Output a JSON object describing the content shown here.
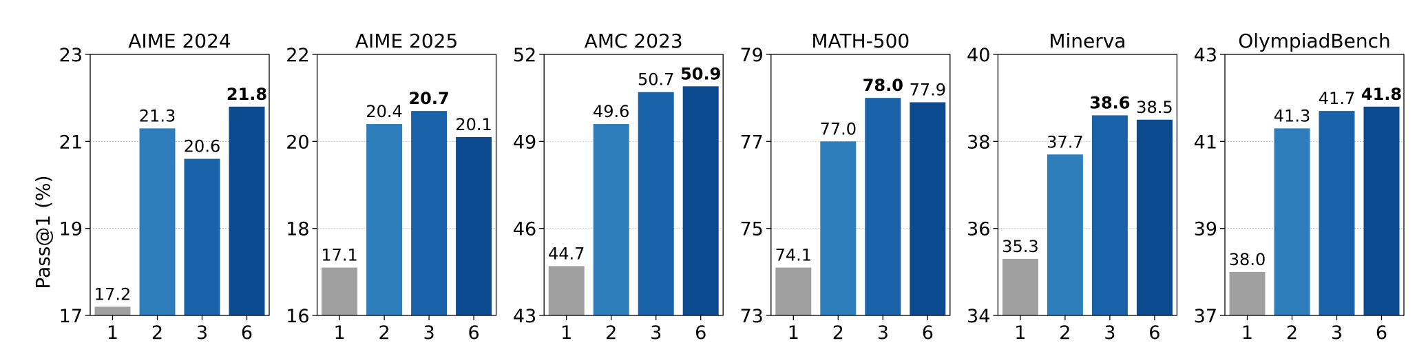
{
  "chart_data": {
    "type": "bar",
    "ylabel": "Pass@1 (%)",
    "colors": {
      "1": "#a0a0a0",
      "2": "#2f7ebc",
      "3": "#1a62a8",
      "6": "#0b4a8e"
    },
    "panels": [
      {
        "title": "AIME 2024",
        "categories": [
          "1",
          "2",
          "3",
          "6"
        ],
        "values": [
          17.2,
          21.3,
          20.6,
          21.8
        ],
        "labels": [
          "17.2",
          "21.3",
          "20.6",
          "21.8"
        ],
        "best_index": 3,
        "ylim": [
          17,
          23
        ],
        "yticks": [
          "17",
          "19",
          "21",
          "23"
        ],
        "grid": true
      },
      {
        "title": "AIME 2025",
        "categories": [
          "1",
          "2",
          "3",
          "6"
        ],
        "values": [
          17.1,
          20.4,
          20.7,
          20.1
        ],
        "labels": [
          "17.1",
          "20.4",
          "20.7",
          "20.1"
        ],
        "best_index": 2,
        "ylim": [
          16,
          22
        ],
        "yticks": [
          "16",
          "18",
          "20",
          "22"
        ],
        "grid": true
      },
      {
        "title": "AMC 2023",
        "categories": [
          "1",
          "2",
          "3",
          "6"
        ],
        "values": [
          44.7,
          49.6,
          50.7,
          50.9
        ],
        "labels": [
          "44.7",
          "49.6",
          "50.7",
          "50.9"
        ],
        "best_index": 3,
        "ylim": [
          43,
          52
        ],
        "yticks": [
          "43",
          "46",
          "49",
          "52"
        ],
        "grid": true
      },
      {
        "title": "MATH-500",
        "categories": [
          "1",
          "2",
          "3",
          "6"
        ],
        "values": [
          74.1,
          77.0,
          78.0,
          77.9
        ],
        "labels": [
          "74.1",
          "77.0",
          "78.0",
          "77.9"
        ],
        "best_index": 2,
        "ylim": [
          73,
          79
        ],
        "yticks": [
          "73",
          "75",
          "77",
          "79"
        ],
        "grid": true
      },
      {
        "title": "Minerva",
        "categories": [
          "1",
          "2",
          "3",
          "6"
        ],
        "values": [
          35.3,
          37.7,
          38.6,
          38.5
        ],
        "labels": [
          "35.3",
          "37.7",
          "38.6",
          "38.5"
        ],
        "best_index": 2,
        "ylim": [
          34,
          40
        ],
        "yticks": [
          "34",
          "36",
          "38",
          "40"
        ],
        "grid": true
      },
      {
        "title": "OlympiadBench",
        "categories": [
          "1",
          "2",
          "3",
          "6"
        ],
        "values": [
          38.0,
          41.3,
          41.7,
          41.8
        ],
        "labels": [
          "38.0",
          "41.3",
          "41.7",
          "41.8"
        ],
        "best_index": 3,
        "ylim": [
          37,
          43
        ],
        "yticks": [
          "37",
          "39",
          "41",
          "43"
        ],
        "grid": true
      }
    ]
  }
}
